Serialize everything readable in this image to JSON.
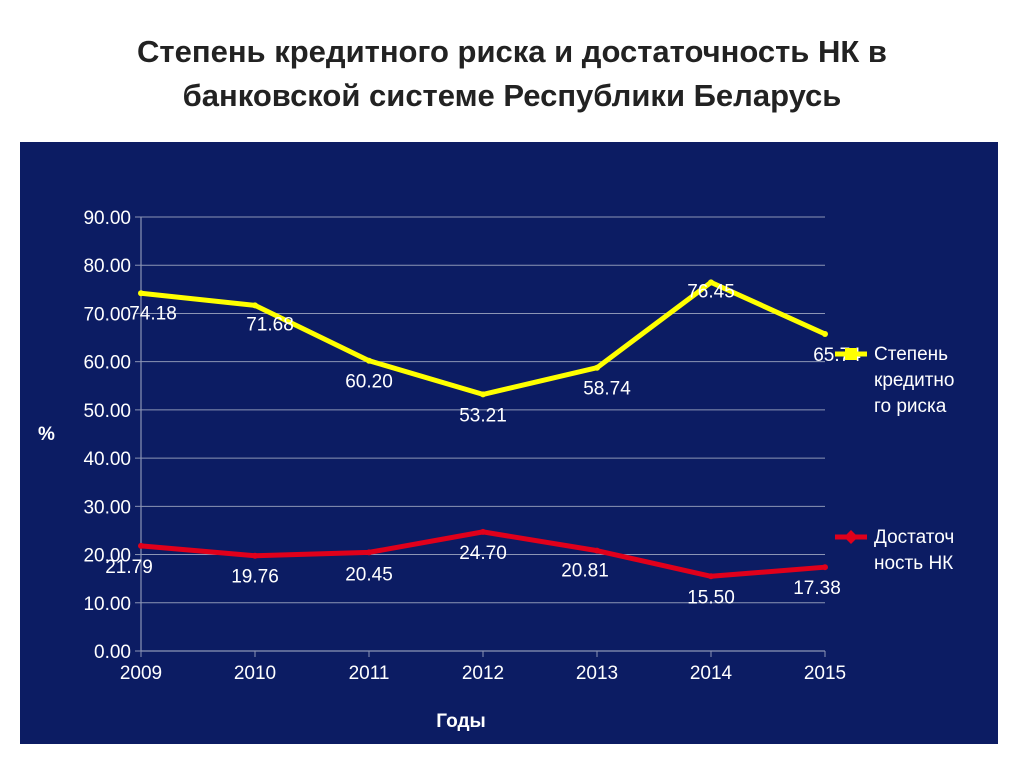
{
  "page": {
    "title_line1": "Степень кредитного риска и достаточность НК в",
    "title_line2": "банковской системе Республики Беларусь"
  },
  "colors": {
    "background": "#ffffff",
    "plot_background": "#0c1c63",
    "grid": "#8c95b5",
    "axis_text": "#ffffff",
    "credit_risk": "#ffff00",
    "capital_adequacy": "#e0001b"
  },
  "chart_data": {
    "type": "line",
    "title": "",
    "xlabel": "Годы",
    "ylabel": "%",
    "categories": [
      "2009",
      "2010",
      "2011",
      "2012",
      "2013",
      "2014",
      "2015"
    ],
    "ylim": [
      0,
      90
    ],
    "ytick_labels": [
      "0.00",
      "10.00",
      "20.00",
      "30.00",
      "40.00",
      "50.00",
      "60.00",
      "70.00",
      "80.00",
      "90.00"
    ],
    "grid": true,
    "legend_position": "right",
    "series": [
      {
        "name_lines": [
          "Степень",
          "кредитно",
          "го риска"
        ],
        "color": "#ffff00",
        "values": [
          74.18,
          71.68,
          60.2,
          53.21,
          58.74,
          76.45,
          65.74
        ],
        "labels": [
          "74.18",
          "71.68",
          "60.20",
          "53.21",
          "58.74",
          "76.45",
          "65.74"
        ]
      },
      {
        "name_lines": [
          "Достаточ",
          "ность НК"
        ],
        "color": "#e0001b",
        "values": [
          21.79,
          19.76,
          20.45,
          24.7,
          20.81,
          15.5,
          17.38
        ],
        "labels": [
          "21.79",
          "19.76",
          "20.45",
          "24.70",
          "20.81",
          "15.50",
          "17.38"
        ]
      }
    ]
  }
}
